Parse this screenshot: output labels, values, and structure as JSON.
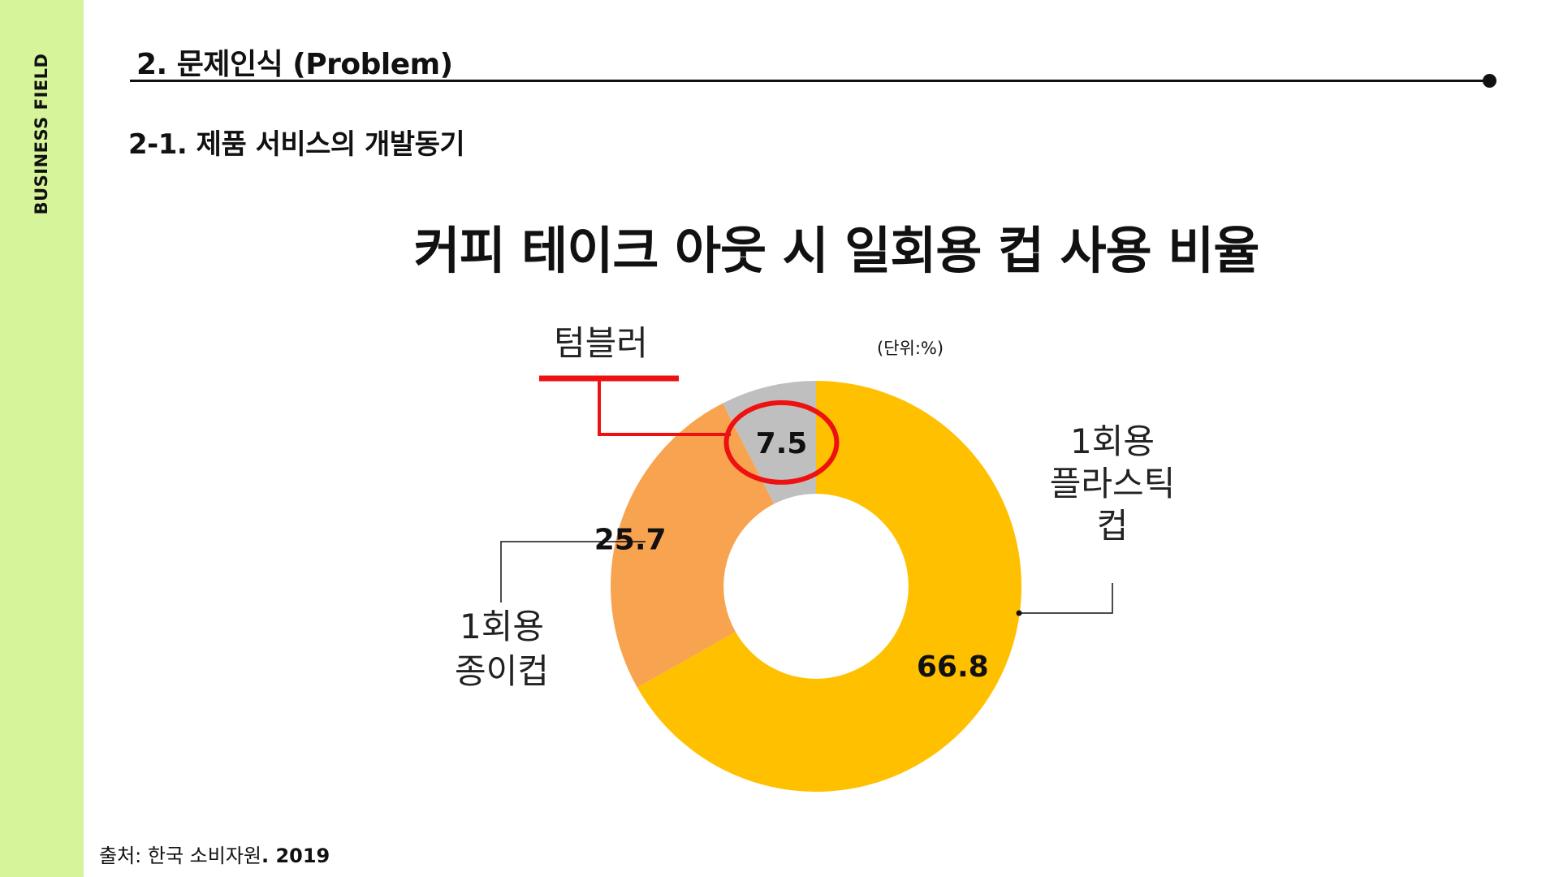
{
  "sidebar": {
    "label": "BUSINESS FIELD",
    "color": "#d6f59a"
  },
  "header": {
    "section_title": "2. 문제인식 (Problem)",
    "subsection_title": "2-1. 제품 서비스의 개발동기"
  },
  "unit_note": "(단위:%)",
  "source": {
    "text": "출처: 한국 소비자원",
    "year": ". 2019"
  },
  "highlight_color": "#ee1111",
  "chart_data": {
    "type": "pie",
    "title": "커피 테이크 아웃 시 일회용 컵 사용 비율",
    "hole": 0.45,
    "slices": [
      {
        "name": "1회용 플라스틱 컵",
        "label_lines": [
          "1회용",
          "플라스틱",
          "컵"
        ],
        "value": 66.8,
        "color": "#ffc000"
      },
      {
        "name": "1회용 종이컵",
        "label_lines": [
          "1회용",
          "종이컵"
        ],
        "value": 25.7,
        "color": "#f8a350"
      },
      {
        "name": "텀블러",
        "label_lines": [
          "텀블러"
        ],
        "value": 7.5,
        "color": "#bfbfbf",
        "highlighted": true
      }
    ]
  }
}
